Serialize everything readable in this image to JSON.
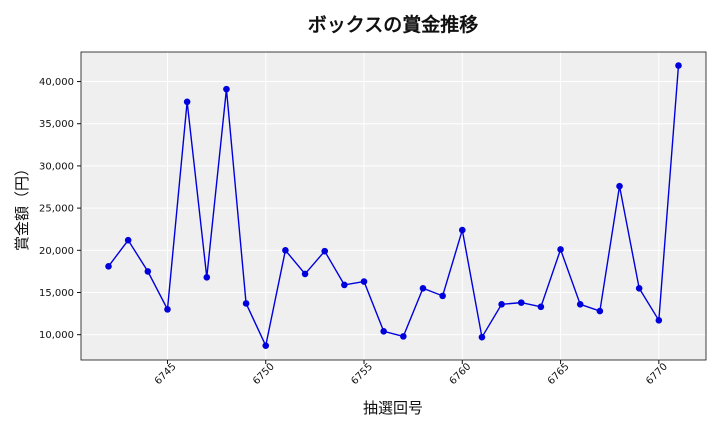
{
  "chart_data": {
    "type": "line",
    "title": "ボックスの賞金推移",
    "xlabel": "抽選回号",
    "ylabel": "賞金額（円）",
    "x": [
      6742,
      6743,
      6744,
      6745,
      6746,
      6747,
      6748,
      6749,
      6750,
      6751,
      6752,
      6753,
      6754,
      6755,
      6756,
      6757,
      6758,
      6759,
      6760,
      6761,
      6762,
      6763,
      6764,
      6765,
      6766,
      6767,
      6768,
      6769,
      6770,
      6771
    ],
    "series": [
      {
        "values": [
          18100,
          21200,
          17500,
          13000,
          37600,
          16800,
          39100,
          13700,
          8700,
          20000,
          17200,
          19900,
          15900,
          16300,
          10400,
          9800,
          15500,
          14600,
          22400,
          9700,
          13600,
          13800,
          13300,
          20100,
          13600,
          12800,
          27600,
          15500,
          11700,
          41900
        ],
        "color": "#0000dd"
      }
    ],
    "xlim": [
      6740.6,
      6772.4
    ],
    "ylim": [
      7000,
      43500
    ],
    "xticks": [
      6745,
      6750,
      6755,
      6760,
      6765,
      6770
    ],
    "yticks": [
      10000,
      15000,
      20000,
      25000,
      30000,
      35000,
      40000
    ],
    "ytick_labels": [
      "10,000",
      "15,000",
      "20,000",
      "25,000",
      "30,000",
      "35,000",
      "40,000"
    ],
    "grid": true,
    "plot_background": "#efefef"
  }
}
